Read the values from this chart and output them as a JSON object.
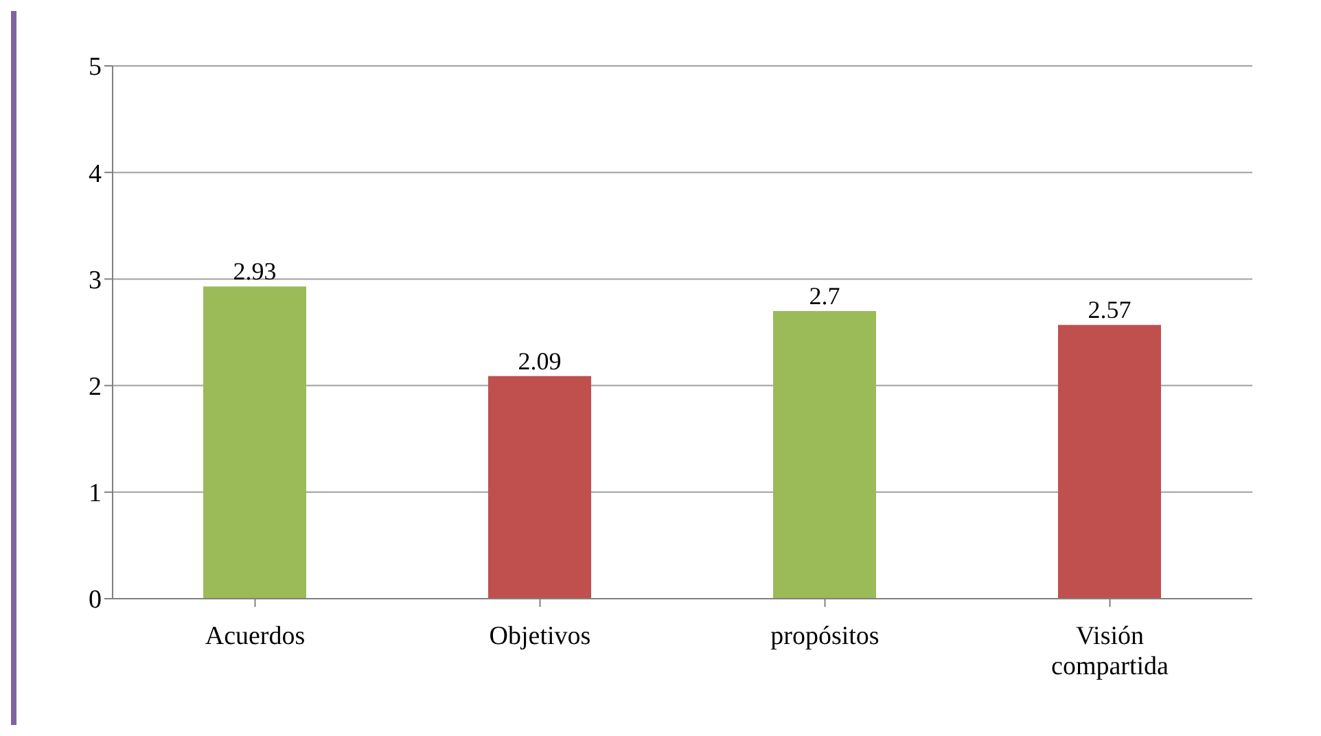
{
  "chart_data": {
    "type": "bar",
    "categories": [
      "Acuerdos",
      "Objetivos",
      "propósitos",
      "Visión compartida"
    ],
    "values": [
      2.93,
      2.09,
      2.7,
      2.57
    ],
    "colors": [
      "#9bbb59",
      "#c0504d",
      "#9bbb59",
      "#c0504d"
    ],
    "ylim": [
      0,
      5
    ],
    "yticks": [
      0,
      1,
      2,
      3,
      4,
      5
    ],
    "grid": "y",
    "data_labels": true,
    "legend": false
  }
}
